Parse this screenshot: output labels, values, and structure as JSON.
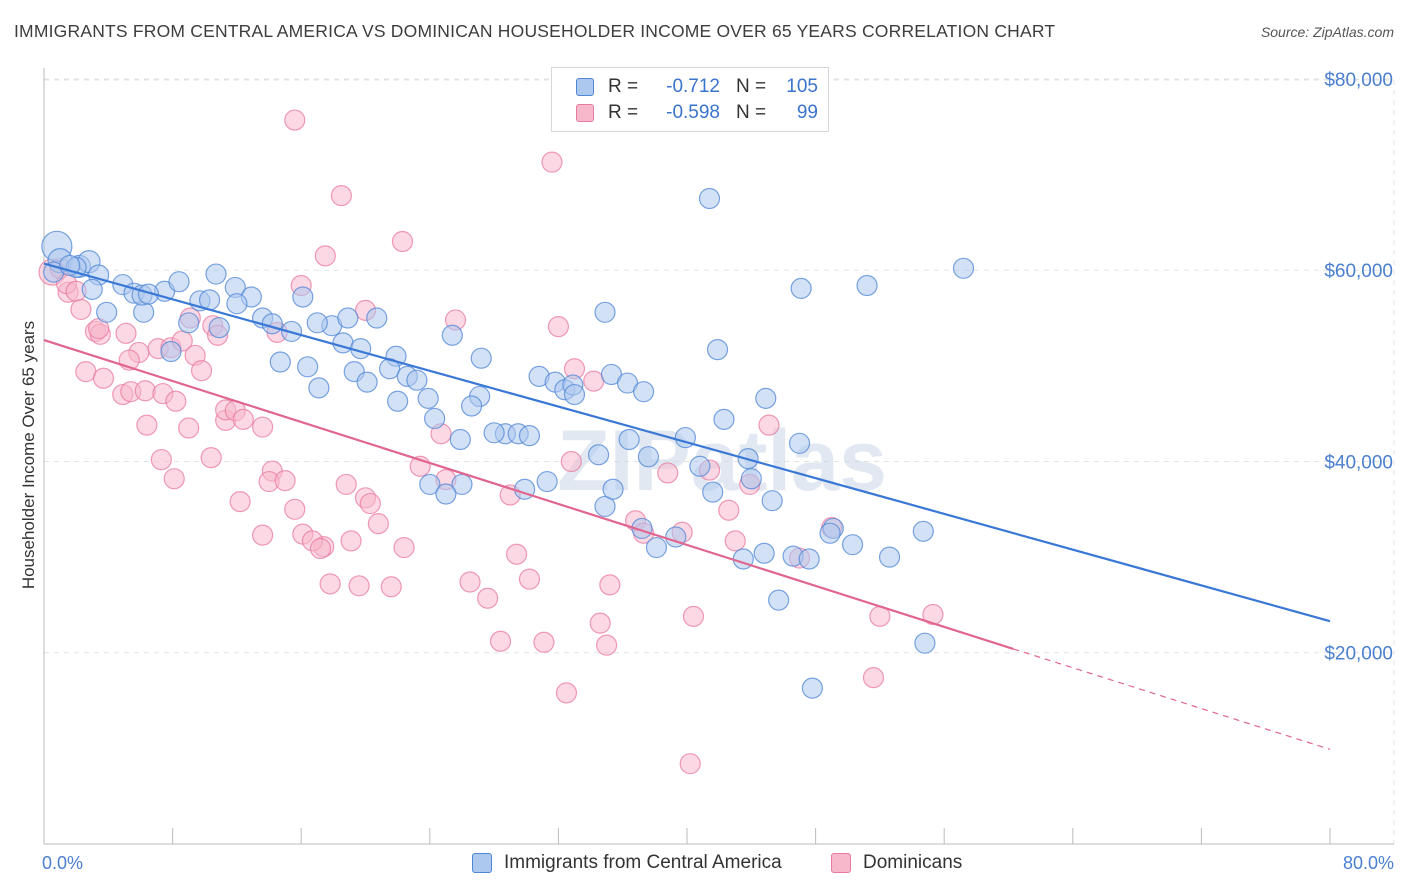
{
  "header": {
    "title": "IMMIGRANTS FROM CENTRAL AMERICA VS DOMINICAN HOUSEHOLDER INCOME OVER 65 YEARS CORRELATION CHART",
    "source": "Source: ZipAtlas.com"
  },
  "legend": {
    "rows": [
      {
        "r_label": "R =",
        "r_value": "-0.712",
        "n_label": "N =",
        "n_value": "105"
      },
      {
        "r_label": "R =",
        "r_value": "-0.598",
        "n_label": "N =",
        "n_value": "99"
      }
    ]
  },
  "bottom_legend": {
    "series1": "Immigrants from Central America",
    "series2": "Dominicans"
  },
  "watermark": "ZIPatlas",
  "chart_data": {
    "type": "scatter",
    "title": "IMMIGRANTS FROM CENTRAL AMERICA VS DOMINICAN HOUSEHOLDER INCOME OVER 65 YEARS CORRELATION CHART",
    "xlabel": "",
    "ylabel": "Householder Income Over 65 years",
    "xlim": [
      0,
      80
    ],
    "ylim": [
      0,
      83000
    ],
    "x_tick_labels": [
      "0.0%",
      "80.0%"
    ],
    "y_ticks": [
      20000,
      40000,
      60000,
      80000
    ],
    "y_tick_labels": [
      "$20,000",
      "$40,000",
      "$60,000",
      "$80,000"
    ],
    "grid": true,
    "colors": {
      "series1": "#4f86d6",
      "series2": "#e87aa0",
      "series1_fill": "#adc8ef",
      "series2_fill": "#f7b8cc",
      "axis_label": "#4a7fd0"
    },
    "series": [
      {
        "name": "Immigrants from Central America",
        "R": -0.712,
        "N": 105,
        "trend": {
          "x0": 0,
          "y0": 60700,
          "x1": 80,
          "y1": 23300
        },
        "points": [
          [
            0.8,
            62500,
            15
          ],
          [
            1.0,
            61000,
            12
          ],
          [
            2.2,
            60400,
            11
          ],
          [
            0.6,
            59800,
            10
          ],
          [
            2.8,
            60900,
            11
          ],
          [
            3.4,
            59500,
            10
          ],
          [
            2.0,
            60300,
            10
          ],
          [
            1.6,
            60500,
            10
          ],
          [
            4.9,
            58500,
            10
          ],
          [
            5.6,
            57600,
            10
          ],
          [
            7.5,
            57800,
            10
          ],
          [
            8.4,
            58800,
            10
          ],
          [
            10.7,
            59600,
            10
          ],
          [
            11.9,
            58200,
            10
          ],
          [
            12.9,
            57200,
            10
          ],
          [
            16.1,
            57200,
            10
          ],
          [
            3.9,
            55600,
            10
          ],
          [
            6.2,
            55600,
            10
          ],
          [
            6.1,
            57400,
            10
          ],
          [
            9.7,
            56800,
            10
          ],
          [
            10.3,
            56900,
            10
          ],
          [
            7.9,
            51500,
            10
          ],
          [
            10.9,
            54000,
            10
          ],
          [
            13.6,
            55000,
            10
          ],
          [
            14.2,
            54400,
            10
          ],
          [
            15.4,
            53600,
            10
          ],
          [
            17.9,
            54200,
            10
          ],
          [
            18.9,
            55000,
            10
          ],
          [
            20.7,
            55000,
            10
          ],
          [
            14.7,
            50400,
            10
          ],
          [
            16.4,
            49900,
            10
          ],
          [
            17.1,
            47700,
            10
          ],
          [
            18.6,
            52400,
            10
          ],
          [
            19.7,
            51800,
            10
          ],
          [
            19.3,
            49400,
            10
          ],
          [
            20.1,
            48300,
            10
          ],
          [
            21.9,
            51000,
            10
          ],
          [
            21.5,
            49700,
            10
          ],
          [
            22.6,
            48900,
            10
          ],
          [
            23.2,
            48500,
            10
          ],
          [
            22.0,
            46300,
            10
          ],
          [
            23.9,
            46600,
            10
          ],
          [
            24.3,
            44500,
            10
          ],
          [
            25.4,
            53200,
            10
          ],
          [
            27.2,
            50800,
            10
          ],
          [
            27.1,
            46800,
            10
          ],
          [
            26.6,
            45800,
            10
          ],
          [
            25.9,
            42300,
            10
          ],
          [
            28.7,
            42900,
            10
          ],
          [
            29.5,
            42900,
            10
          ],
          [
            30.2,
            42700,
            10
          ],
          [
            30.8,
            48900,
            10
          ],
          [
            31.8,
            48300,
            10
          ],
          [
            32.4,
            47500,
            10
          ],
          [
            32.9,
            48000,
            10
          ],
          [
            34.9,
            55600,
            10
          ],
          [
            35.3,
            49100,
            10
          ],
          [
            36.3,
            48200,
            10
          ],
          [
            37.3,
            47300,
            10
          ],
          [
            36.4,
            42300,
            10
          ],
          [
            37.6,
            40500,
            10
          ],
          [
            34.5,
            40700,
            10
          ],
          [
            39.9,
            42500,
            10
          ],
          [
            40.8,
            39500,
            10
          ],
          [
            41.4,
            67500,
            10
          ],
          [
            41.9,
            51700,
            10
          ],
          [
            42.3,
            44400,
            10
          ],
          [
            43.8,
            40300,
            10
          ],
          [
            44.0,
            38200,
            10
          ],
          [
            44.9,
            46600,
            10
          ],
          [
            45.3,
            35900,
            10
          ],
          [
            47.0,
            41900,
            10
          ],
          [
            47.1,
            58100,
            10
          ],
          [
            49.1,
            33000,
            10
          ],
          [
            51.2,
            58400,
            10
          ],
          [
            57.2,
            60200,
            10
          ],
          [
            26.0,
            37600,
            10
          ],
          [
            29.9,
            37100,
            10
          ],
          [
            31.3,
            37900,
            10
          ],
          [
            34.9,
            35300,
            10
          ],
          [
            35.4,
            37100,
            10
          ],
          [
            37.2,
            33000,
            10
          ],
          [
            38.1,
            31000,
            10
          ],
          [
            39.3,
            32100,
            10
          ],
          [
            41.6,
            36800,
            10
          ],
          [
            43.5,
            29800,
            10
          ],
          [
            44.8,
            30400,
            10
          ],
          [
            46.6,
            30100,
            10
          ],
          [
            47.6,
            29800,
            10
          ],
          [
            48.9,
            32500,
            10
          ],
          [
            50.3,
            31300,
            10
          ],
          [
            52.6,
            30000,
            10
          ],
          [
            54.7,
            32700,
            10
          ],
          [
            45.7,
            25500,
            10
          ],
          [
            54.8,
            21000,
            10
          ],
          [
            47.8,
            16300,
            10
          ],
          [
            24.0,
            37600,
            10
          ],
          [
            25.0,
            36600,
            10
          ],
          [
            28.0,
            43000,
            10
          ],
          [
            33.0,
            47000,
            10
          ],
          [
            17.0,
            54500,
            10
          ],
          [
            12.0,
            56500,
            10
          ],
          [
            9.0,
            54500,
            10
          ],
          [
            6.5,
            57500,
            10
          ],
          [
            3.0,
            58000,
            10
          ]
        ]
      },
      {
        "name": "Dominicans",
        "R": -0.598,
        "N": 99,
        "trend": {
          "x0": 0,
          "y0": 52700,
          "x1": 60.3,
          "y1": 20400,
          "dash_x1": 80,
          "dash_y1": 9900
        },
        "points": [
          [
            0.5,
            59800,
            13
          ],
          [
            1.0,
            60200,
            10
          ],
          [
            1.5,
            57700,
            10
          ],
          [
            1.4,
            58600,
            10
          ],
          [
            2.0,
            57800,
            10
          ],
          [
            3.2,
            53600,
            10
          ],
          [
            2.3,
            55900,
            10
          ],
          [
            3.5,
            53300,
            10
          ],
          [
            3.4,
            53900,
            10
          ],
          [
            5.1,
            53400,
            10
          ],
          [
            5.9,
            51400,
            10
          ],
          [
            7.1,
            51800,
            10
          ],
          [
            7.9,
            51900,
            10
          ],
          [
            8.6,
            52600,
            10
          ],
          [
            9.4,
            51100,
            10
          ],
          [
            9.1,
            55000,
            10
          ],
          [
            10.5,
            54200,
            10
          ],
          [
            10.8,
            53200,
            10
          ],
          [
            11.3,
            44300,
            10
          ],
          [
            2.6,
            49400,
            10
          ],
          [
            3.7,
            48700,
            10
          ],
          [
            5.3,
            50600,
            10
          ],
          [
            4.9,
            47000,
            10
          ],
          [
            5.4,
            47300,
            10
          ],
          [
            6.3,
            47400,
            10
          ],
          [
            7.4,
            47100,
            10
          ],
          [
            8.2,
            46300,
            10
          ],
          [
            9.8,
            49500,
            10
          ],
          [
            11.3,
            45400,
            10
          ],
          [
            11.9,
            45300,
            10
          ],
          [
            12.4,
            44400,
            10
          ],
          [
            13.6,
            43600,
            10
          ],
          [
            6.4,
            43800,
            10
          ],
          [
            7.3,
            40200,
            10
          ],
          [
            8.1,
            38200,
            10
          ],
          [
            9.0,
            43500,
            10
          ],
          [
            10.4,
            40400,
            10
          ],
          [
            12.2,
            35800,
            10
          ],
          [
            13.6,
            32300,
            10
          ],
          [
            14.2,
            39000,
            10
          ],
          [
            14.0,
            37900,
            10
          ],
          [
            15.6,
            35000,
            10
          ],
          [
            16.1,
            32400,
            10
          ],
          [
            17.4,
            31100,
            10
          ],
          [
            17.8,
            27200,
            10
          ],
          [
            16.7,
            31700,
            10
          ],
          [
            17.2,
            30900,
            10
          ],
          [
            18.8,
            37600,
            10
          ],
          [
            19.1,
            31700,
            10
          ],
          [
            20.0,
            36200,
            10
          ],
          [
            20.3,
            35600,
            10
          ],
          [
            20.8,
            33500,
            10
          ],
          [
            19.6,
            27000,
            10
          ],
          [
            21.6,
            26900,
            10
          ],
          [
            22.4,
            31000,
            10
          ],
          [
            23.4,
            39500,
            10
          ],
          [
            24.7,
            42900,
            10
          ],
          [
            25.6,
            54800,
            10
          ],
          [
            26.5,
            27400,
            10
          ],
          [
            27.6,
            25700,
            10
          ],
          [
            28.4,
            21200,
            10
          ],
          [
            29.4,
            30300,
            10
          ],
          [
            30.2,
            27700,
            10
          ],
          [
            31.1,
            21100,
            10
          ],
          [
            32.5,
            15800,
            10
          ],
          [
            32.8,
            40000,
            10
          ],
          [
            34.2,
            48400,
            10
          ],
          [
            34.6,
            23100,
            10
          ],
          [
            35.2,
            27100,
            10
          ],
          [
            35.0,
            20800,
            10
          ],
          [
            36.8,
            33800,
            10
          ],
          [
            37.3,
            32500,
            10
          ],
          [
            38.8,
            38800,
            10
          ],
          [
            39.7,
            32600,
            10
          ],
          [
            40.4,
            23800,
            10
          ],
          [
            40.2,
            8400,
            10
          ],
          [
            41.4,
            39100,
            10
          ],
          [
            42.6,
            34900,
            10
          ],
          [
            43.0,
            31700,
            10
          ],
          [
            43.9,
            37600,
            10
          ],
          [
            45.1,
            43800,
            10
          ],
          [
            47.0,
            29900,
            10
          ],
          [
            49.0,
            33100,
            10
          ],
          [
            52.0,
            23800,
            10
          ],
          [
            55.3,
            24000,
            10
          ],
          [
            51.6,
            17400,
            10
          ],
          [
            16.0,
            58400,
            10
          ],
          [
            17.5,
            61500,
            10
          ],
          [
            18.5,
            67800,
            10
          ],
          [
            22.3,
            63000,
            10
          ],
          [
            31.6,
            71300,
            10
          ],
          [
            15.6,
            75700,
            10
          ],
          [
            20.0,
            55800,
            10
          ],
          [
            32.0,
            54100,
            10
          ],
          [
            33.0,
            49700,
            10
          ],
          [
            25.0,
            38100,
            10
          ],
          [
            15.0,
            38000,
            10
          ],
          [
            29.0,
            36500,
            10
          ],
          [
            14.5,
            53500,
            10
          ]
        ]
      }
    ]
  }
}
